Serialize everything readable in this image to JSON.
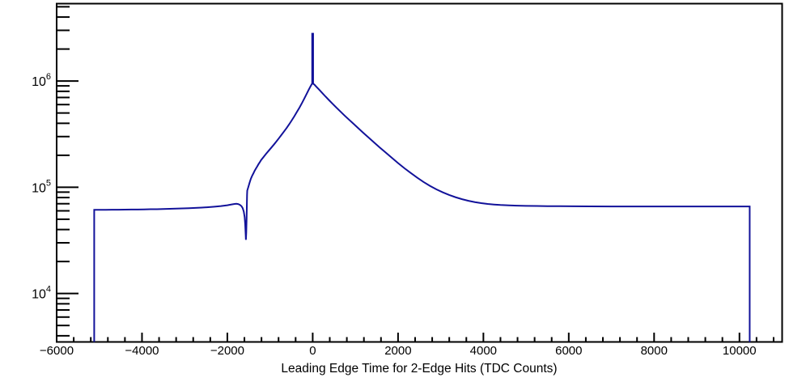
{
  "window": {
    "background_color": "#ffffff"
  },
  "chart_data": {
    "type": "line",
    "subtype": "histogram-step-logy",
    "title": "",
    "xlabel": "Leading Edge Time for 2-Edge Hits (TDC Counts)",
    "ylabel": "",
    "grid": false,
    "legend": "none",
    "y_scale": "log",
    "xlim": [
      -6000,
      11000
    ],
    "ylim": [
      3500,
      5350000
    ],
    "x_minor_step": 400,
    "x_major_ticks": [
      {
        "value": -6000,
        "label": "−6000"
      },
      {
        "value": -4000,
        "label": "−4000"
      },
      {
        "value": -2000,
        "label": "−2000"
      },
      {
        "value": 0,
        "label": "0"
      },
      {
        "value": 2000,
        "label": "2000"
      },
      {
        "value": 4000,
        "label": "4000"
      },
      {
        "value": 6000,
        "label": "6000"
      },
      {
        "value": 8000,
        "label": "8000"
      },
      {
        "value": 10000,
        "label": "10000"
      }
    ],
    "y_major_ticks": [
      {
        "value": 10000,
        "base": "10",
        "exp": "4"
      },
      {
        "value": 100000,
        "base": "10",
        "exp": "5"
      },
      {
        "value": 1000000,
        "base": "10",
        "exp": "6"
      }
    ],
    "line_color": "#12129a",
    "frame_color": "#000000",
    "histogram_summary": {
      "data_x_start": -5120,
      "data_x_end": 10240,
      "left_plateau": 62000,
      "right_plateau": 66000,
      "bump_x": -1800,
      "bump_value": 70000,
      "dip_x": -1565,
      "dip_value": 32000,
      "peak_x": 0,
      "peak_value": 960000,
      "spike_x": 0,
      "spike_value": 2790000
    },
    "curve_points": [
      [
        -5120,
        3500
      ],
      [
        -5120,
        61300
      ],
      [
        -5000,
        61400
      ],
      [
        -4850,
        61350
      ],
      [
        -4700,
        61500
      ],
      [
        -4550,
        61450
      ],
      [
        -4400,
        61600
      ],
      [
        -4250,
        61700
      ],
      [
        -4100,
        61800
      ],
      [
        -3950,
        61900
      ],
      [
        -3800,
        62100
      ],
      [
        -3650,
        62200
      ],
      [
        -3500,
        62400
      ],
      [
        -3350,
        62700
      ],
      [
        -3200,
        62900
      ],
      [
        -3050,
        63200
      ],
      [
        -2900,
        63500
      ],
      [
        -2750,
        63900
      ],
      [
        -2600,
        64400
      ],
      [
        -2450,
        64900
      ],
      [
        -2300,
        65600
      ],
      [
        -2150,
        66500
      ],
      [
        -2000,
        67700
      ],
      [
        -1900,
        68900
      ],
      [
        -1830,
        69700
      ],
      [
        -1790,
        69900
      ],
      [
        -1750,
        69500
      ],
      [
        -1710,
        68500
      ],
      [
        -1670,
        66500
      ],
      [
        -1640,
        63500
      ],
      [
        -1615,
        59000
      ],
      [
        -1595,
        52500
      ],
      [
        -1582,
        45000
      ],
      [
        -1572,
        37000
      ],
      [
        -1565,
        32000
      ],
      [
        -1557,
        37500
      ],
      [
        -1549,
        50000
      ],
      [
        -1543,
        67000
      ],
      [
        -1538,
        85000
      ],
      [
        -1534,
        93000
      ],
      [
        -1510,
        100000
      ],
      [
        -1480,
        110000
      ],
      [
        -1450,
        120000
      ],
      [
        -1420,
        128000
      ],
      [
        -1390,
        135000
      ],
      [
        -1360,
        143000
      ],
      [
        -1330,
        150000
      ],
      [
        -1300,
        157000
      ],
      [
        -1270,
        165000
      ],
      [
        -1240,
        172000
      ],
      [
        -1210,
        180000
      ],
      [
        -1150,
        193000
      ],
      [
        -1090,
        207000
      ],
      [
        -1030,
        221000
      ],
      [
        -970,
        236000
      ],
      [
        -910,
        252000
      ],
      [
        -850,
        270000
      ],
      [
        -790,
        290000
      ],
      [
        -730,
        312000
      ],
      [
        -670,
        336000
      ],
      [
        -610,
        362000
      ],
      [
        -550,
        392000
      ],
      [
        -490,
        427000
      ],
      [
        -430,
        466000
      ],
      [
        -370,
        512000
      ],
      [
        -310,
        562000
      ],
      [
        -250,
        622000
      ],
      [
        -190,
        692000
      ],
      [
        -140,
        760000
      ],
      [
        -100,
        818000
      ],
      [
        -70,
        862000
      ],
      [
        -45,
        900000
      ],
      [
        -25,
        930000
      ],
      [
        -12,
        950000
      ],
      [
        -12,
        2790000
      ],
      [
        10,
        2790000
      ],
      [
        10,
        942000
      ],
      [
        40,
        925000
      ],
      [
        90,
        880000
      ],
      [
        150,
        830000
      ],
      [
        220,
        775000
      ],
      [
        300,
        715000
      ],
      [
        380,
        662000
      ],
      [
        460,
        614000
      ],
      [
        550,
        565000
      ],
      [
        650,
        516000
      ],
      [
        750,
        472000
      ],
      [
        850,
        433000
      ],
      [
        950,
        398000
      ],
      [
        1060,
        362000
      ],
      [
        1180,
        327000
      ],
      [
        1300,
        296000
      ],
      [
        1430,
        266000
      ],
      [
        1560,
        239000
      ],
      [
        1700,
        214000
      ],
      [
        1850,
        190000
      ],
      [
        2000,
        169000
      ],
      [
        2150,
        151000
      ],
      [
        2300,
        136000
      ],
      [
        2450,
        123000
      ],
      [
        2600,
        112000
      ],
      [
        2750,
        103000
      ],
      [
        2900,
        95500
      ],
      [
        3050,
        89500
      ],
      [
        3200,
        84500
      ],
      [
        3350,
        80500
      ],
      [
        3500,
        77200
      ],
      [
        3650,
        74600
      ],
      [
        3800,
        72500
      ],
      [
        3950,
        70900
      ],
      [
        4100,
        69700
      ],
      [
        4250,
        68800
      ],
      [
        4400,
        68100
      ],
      [
        4600,
        67500
      ],
      [
        4800,
        67100
      ],
      [
        5000,
        66800
      ],
      [
        5250,
        66600
      ],
      [
        5500,
        66400
      ],
      [
        5800,
        66300
      ],
      [
        6100,
        66200
      ],
      [
        6500,
        66100
      ],
      [
        7000,
        66000
      ],
      [
        7500,
        66000
      ],
      [
        8000,
        65900
      ],
      [
        8500,
        65950
      ],
      [
        9000,
        65900
      ],
      [
        9500,
        65950
      ],
      [
        10000,
        65900
      ],
      [
        10240,
        65900
      ],
      [
        10240,
        3500
      ]
    ]
  }
}
